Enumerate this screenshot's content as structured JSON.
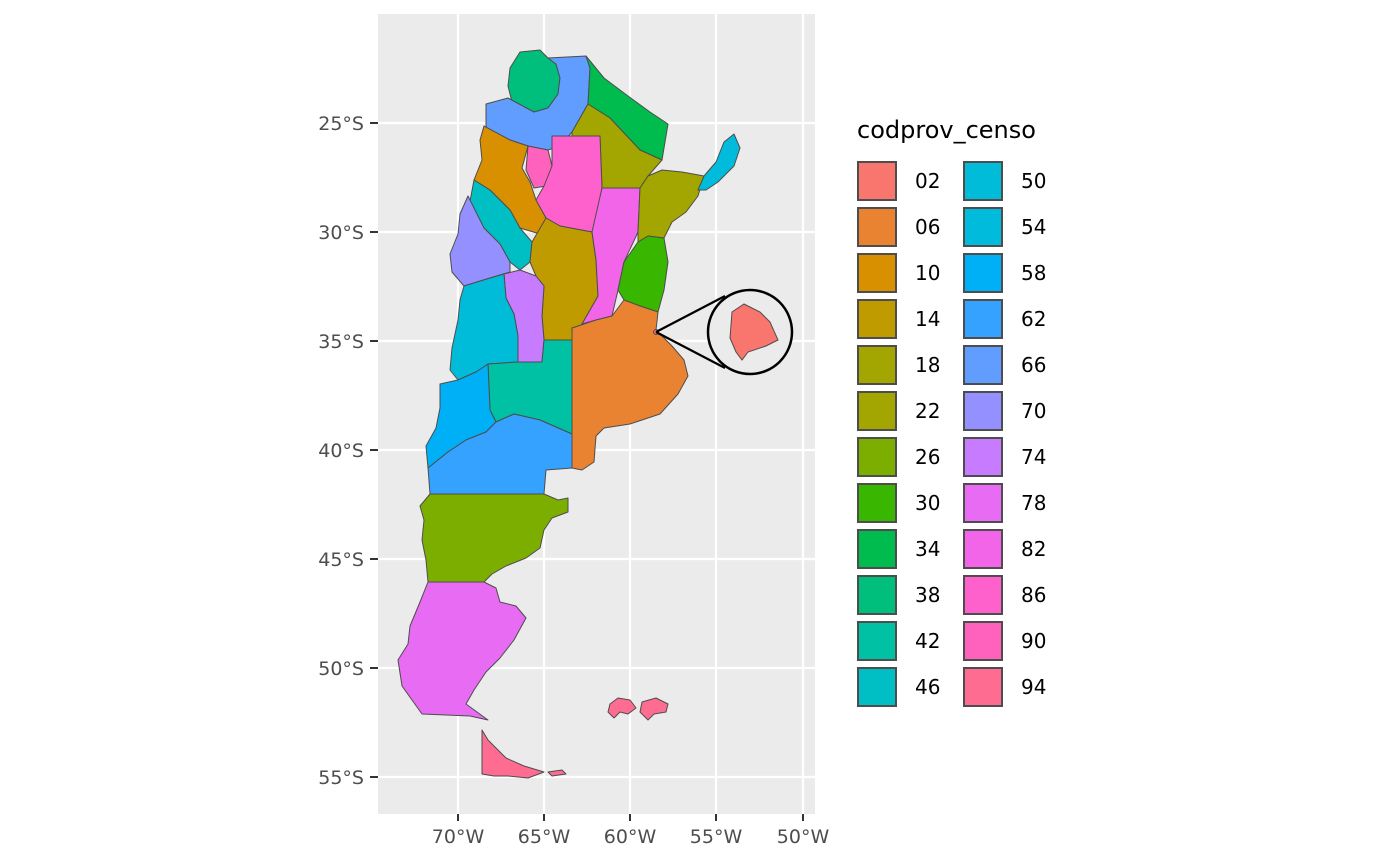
{
  "map": {
    "x_ticks": [
      "70°W",
      "65°W",
      "60°W",
      "55°W",
      "50°W"
    ],
    "y_ticks": [
      "25°S",
      "30°S",
      "35°S",
      "40°S",
      "45°S",
      "50°S",
      "55°S"
    ]
  },
  "legend": {
    "title": "codprov_censo",
    "items": [
      {
        "code": "02",
        "color": "#F8766D"
      },
      {
        "code": "06",
        "color": "#EA8331"
      },
      {
        "code": "10",
        "color": "#D89000"
      },
      {
        "code": "14",
        "color": "#C09B00"
      },
      {
        "code": "18",
        "color": "#A3A500"
      },
      {
        "code": "22",
        "color": "#A3A500"
      },
      {
        "code": "26",
        "color": "#7CAE00"
      },
      {
        "code": "30",
        "color": "#39B600"
      },
      {
        "code": "34",
        "color": "#00BB4E"
      },
      {
        "code": "38",
        "color": "#00BF7D"
      },
      {
        "code": "42",
        "color": "#00C1A3"
      },
      {
        "code": "46",
        "color": "#00BFC4"
      },
      {
        "code": "50",
        "color": "#00BCD8"
      },
      {
        "code": "54",
        "color": "#00BBDB"
      },
      {
        "code": "58",
        "color": "#00B0F6"
      },
      {
        "code": "62",
        "color": "#35A2FF"
      },
      {
        "code": "66",
        "color": "#619CFF"
      },
      {
        "code": "70",
        "color": "#9590FF"
      },
      {
        "code": "74",
        "color": "#C77CFF"
      },
      {
        "code": "78",
        "color": "#E76BF3"
      },
      {
        "code": "82",
        "color": "#F265E8"
      },
      {
        "code": "86",
        "color": "#FF61CC"
      },
      {
        "code": "90",
        "color": "#FF62BC"
      },
      {
        "code": "94",
        "color": "#FF6C91"
      }
    ]
  },
  "colors": {
    "panel_bg": "#EBEBEB",
    "grid": "#FFFFFF",
    "border": "#4D4D4D"
  }
}
